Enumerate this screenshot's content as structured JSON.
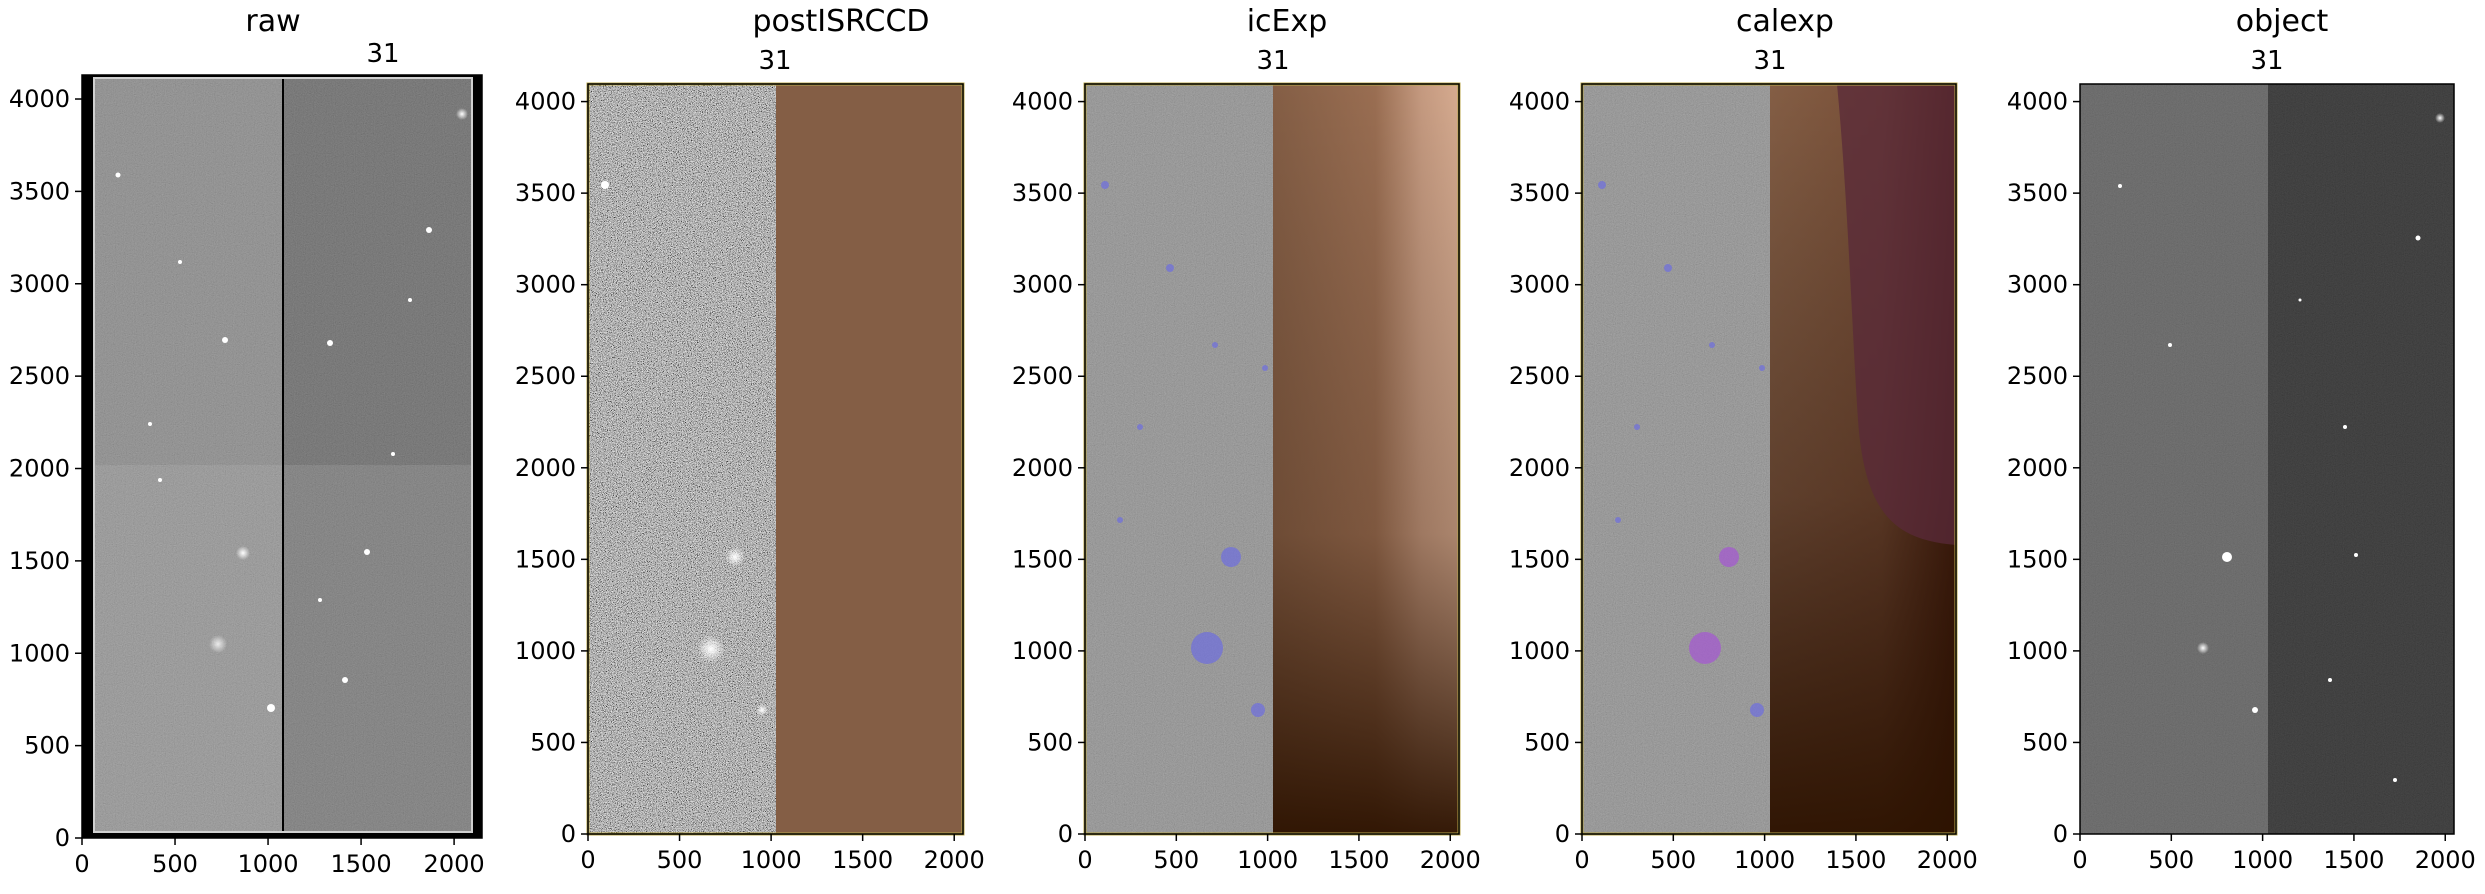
{
  "figure": {
    "description_type": "image-panels"
  },
  "chart_data": [
    {
      "type": "image",
      "title": "raw",
      "ccd_label": "31",
      "xlim": [
        0,
        2150
      ],
      "ylim": [
        0,
        4130
      ],
      "xticks": [
        0,
        500,
        1000,
        1500,
        2000
      ],
      "yticks": [
        0,
        500,
        1000,
        1500,
        2000,
        2500,
        3000,
        3500,
        4000
      ],
      "amp_boundary_x": 1075,
      "amp_boundary_y": 2065
    },
    {
      "type": "image",
      "title": "postISRCCD",
      "ccd_label": "31",
      "xlim": [
        0,
        2048
      ],
      "ylim": [
        0,
        4096
      ],
      "xticks": [
        0,
        500,
        1000,
        1500,
        2000
      ],
      "yticks": [
        0,
        500,
        1000,
        1500,
        2000,
        2500,
        3000,
        3500,
        4000
      ],
      "mask_overlay_start_x": 1024,
      "overlay_color": "#845e45"
    },
    {
      "type": "image",
      "title": "icExp",
      "ccd_label": "31",
      "xlim": [
        0,
        2048
      ],
      "ylim": [
        0,
        4096
      ],
      "xticks": [
        0,
        500,
        1000,
        1500,
        2000
      ],
      "yticks": [
        0,
        500,
        1000,
        1500,
        2000,
        2500,
        3000,
        3500,
        4000
      ],
      "mask_overlay_start_x": 1024,
      "overlay_color": "#845e45",
      "detection_color": "#6e6ee0"
    },
    {
      "type": "image",
      "title": "calexp",
      "ccd_label": "31",
      "xlim": [
        0,
        2048
      ],
      "ylim": [
        0,
        4096
      ],
      "xticks": [
        0,
        500,
        1000,
        1500,
        2000
      ],
      "yticks": [
        0,
        500,
        1000,
        1500,
        2000,
        2500,
        3000,
        3500,
        4000
      ],
      "mask_overlay_start_x": 1024,
      "overlay_color": "#845e45",
      "detection_color": "#6e6ee0"
    },
    {
      "type": "image",
      "title": "object",
      "ccd_label": "31",
      "xlim": [
        0,
        2048
      ],
      "ylim": [
        0,
        4096
      ],
      "xticks": [
        0,
        500,
        1000,
        1500,
        2000
      ],
      "yticks": [
        0,
        500,
        1000,
        1500,
        2000,
        2500,
        3000,
        3500,
        4000
      ],
      "amp_boundary_x": 1024
    }
  ]
}
